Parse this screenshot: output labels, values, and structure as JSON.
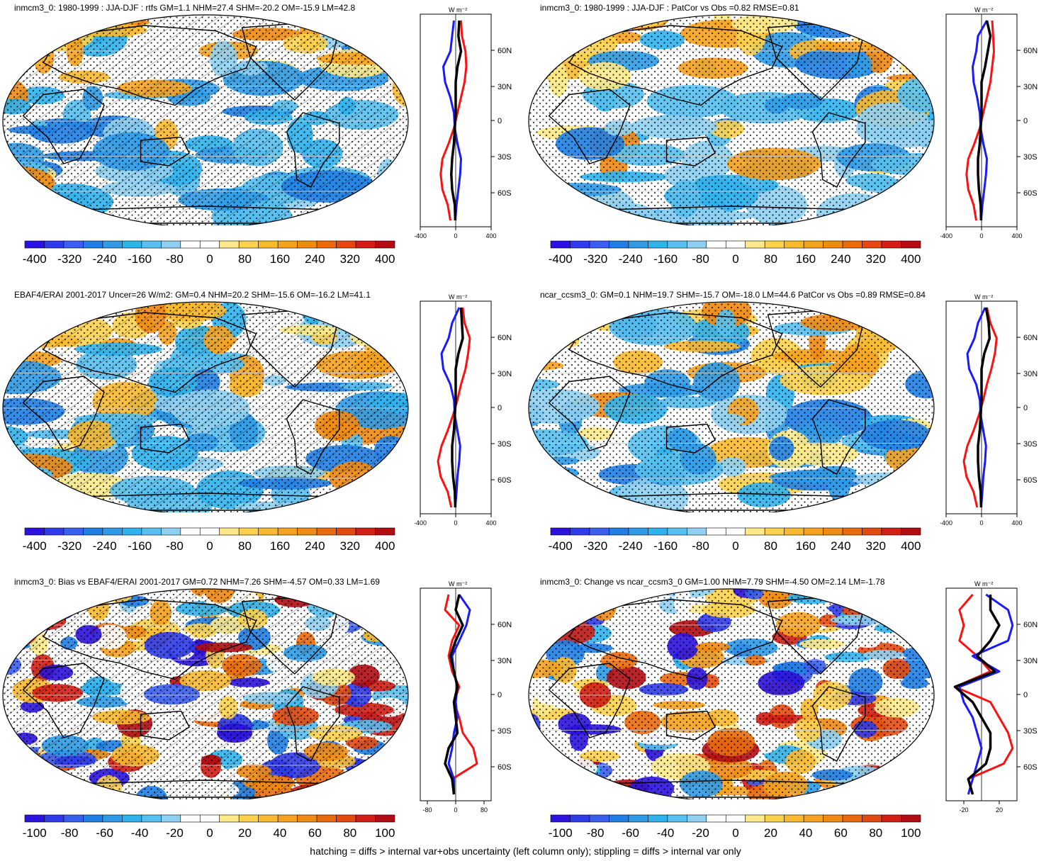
{
  "colors": {
    "palette": [
      "#2b12e0",
      "#2f3bea",
      "#3a5ef0",
      "#1f7fe6",
      "#2e9be8",
      "#2fb3ee",
      "#56c0f0",
      "#8fd0f2",
      "#ffffff",
      "#ffffff",
      "#fde98a",
      "#fcd24c",
      "#f9b92f",
      "#f6a21e",
      "#f08a12",
      "#ea6b0c",
      "#e44a10",
      "#d21e14",
      "#b30c12"
    ],
    "zonal_red": "#ff1010",
    "zonal_blue": "#1a1aff",
    "zonal_black": "#000000"
  },
  "footer": "hatching = diffs > internal var+obs uncertainty (left column only); stippling = diffs > internal var only",
  "panels": [
    {
      "title": "inmcm3_0: 1980-1999 : JJA-DJF : rtfs GM=1.1 NHM=27.4 SHM=-20.2 OM=-15.9 LM=42.8",
      "zonal_units": "W m⁻²",
      "chart_data": {
        "type": "heatmap",
        "colorbar_labels": [
          "-400",
          "-320",
          "-240",
          "-160",
          "-80",
          "0",
          "80",
          "160",
          "240",
          "320",
          "400"
        ],
        "zonal_xticks": [
          "-400",
          "0",
          "400"
        ],
        "zonal_yticks": [
          "60N",
          "30N",
          "0",
          "30S",
          "60S"
        ],
        "zonal_xlim": [
          -400,
          400
        ],
        "zonal_series": [
          {
            "name": "red",
            "values": [
              60,
              70,
              110,
              120,
              100,
              60,
              20,
              -20,
              -80,
              -150,
              -170,
              -150,
              -90,
              -60
            ]
          },
          {
            "name": "blue",
            "values": [
              -20,
              -40,
              -60,
              -140,
              -120,
              -60,
              -20,
              -10,
              20,
              60,
              50,
              30,
              10,
              -5
            ]
          },
          {
            "name": "black",
            "values": [
              40,
              30,
              60,
              20,
              0,
              0,
              0,
              -10,
              -20,
              -40,
              -50,
              -40,
              -10,
              -5
            ]
          }
        ],
        "hatching": true
      }
    },
    {
      "title": "inmcm3_0: 1980-1999 : JJA-DJF : PatCor vs Obs =0.82 RMSE=0.81",
      "zonal_units": "W m⁻²",
      "chart_data": {
        "type": "heatmap",
        "colorbar_labels": [
          "-400",
          "-320",
          "-240",
          "-160",
          "-80",
          "0",
          "80",
          "160",
          "240",
          "320",
          "400"
        ],
        "zonal_xticks": [
          "-400",
          "0",
          "400"
        ],
        "zonal_yticks": [
          "60N",
          "30N",
          "0",
          "30S",
          "60S"
        ],
        "zonal_xlim": [
          -400,
          400
        ],
        "zonal_series": [
          {
            "name": "red",
            "values": [
              120,
              130,
              140,
              120,
              100,
              60,
              20,
              -20,
              -80,
              -150,
              -170,
              -150,
              -90,
              -60
            ]
          },
          {
            "name": "blue",
            "values": [
              60,
              -40,
              -60,
              -100,
              -90,
              -50,
              -20,
              -10,
              20,
              60,
              50,
              30,
              10,
              -5
            ]
          },
          {
            "name": "black",
            "values": [
              60,
              100,
              70,
              40,
              0,
              0,
              0,
              -10,
              -20,
              -40,
              -40,
              -30,
              -10,
              -5
            ]
          }
        ],
        "hatching": false
      }
    },
    {
      "title": "EBAF4/ERAI 2001-2017 Uncer=26 W/m2: GM=0.4 NHM=20.2 SHM=-15.6 OM=-16.2 LM=41.1",
      "zonal_units": "W m⁻²",
      "chart_data": {
        "type": "heatmap",
        "colorbar_labels": [
          "-400",
          "-320",
          "-240",
          "-160",
          "-80",
          "0",
          "80",
          "160",
          "240",
          "320",
          "400"
        ],
        "zonal_xticks": [
          "-400",
          "0",
          "400"
        ],
        "zonal_yticks": [
          "60N",
          "30N",
          "0",
          "30S",
          "60S"
        ],
        "zonal_xlim": [
          -400,
          400
        ],
        "zonal_series": [
          {
            "name": "red",
            "values": [
              80,
              100,
              160,
              140,
              110,
              60,
              20,
              -30,
              -90,
              -160,
              -200,
              -170,
              -90,
              -50
            ]
          },
          {
            "name": "blue",
            "values": [
              40,
              -40,
              -80,
              -160,
              -140,
              -60,
              -20,
              -10,
              20,
              50,
              40,
              20,
              10,
              -5
            ]
          },
          {
            "name": "black",
            "values": [
              60,
              70,
              80,
              30,
              0,
              0,
              0,
              -10,
              -20,
              -40,
              -40,
              -30,
              -10,
              -5
            ]
          }
        ],
        "hatching": true
      }
    },
    {
      "title": "ncar_ccsm3_0: GM=0.1 NHM=19.7 SHM=-15.7 OM=-18.0 LM=44.6 PatCor vs Obs =0.89 RMSE=0.84",
      "zonal_units": "W m⁻²",
      "chart_data": {
        "type": "heatmap",
        "colorbar_labels": [
          "-400",
          "-320",
          "-240",
          "-160",
          "-80",
          "0",
          "80",
          "160",
          "240",
          "320",
          "400"
        ],
        "zonal_xticks": [
          "-400",
          "0",
          "400"
        ],
        "zonal_yticks": [
          "60N",
          "30N",
          "0",
          "30S",
          "60S"
        ],
        "zonal_xlim": [
          -400,
          400
        ],
        "zonal_series": [
          {
            "name": "red",
            "values": [
              60,
              100,
              170,
              150,
              110,
              60,
              20,
              -30,
              -90,
              -160,
              -200,
              -170,
              -90,
              -50
            ]
          },
          {
            "name": "blue",
            "values": [
              40,
              -40,
              -80,
              -160,
              -140,
              -60,
              -20,
              -10,
              20,
              50,
              40,
              20,
              10,
              -5
            ]
          },
          {
            "name": "black",
            "values": [
              50,
              80,
              90,
              30,
              0,
              0,
              0,
              -10,
              -20,
              -40,
              -40,
              -30,
              -10,
              -5
            ]
          }
        ],
        "hatching": false
      }
    },
    {
      "title": "inmcm3_0: Bias vs EBAF4/ERAI 2001-2017 GM=0.72 NHM=7.26 SHM=-4.57 OM=0.33 LM=1.69",
      "zonal_units": "W m⁻²",
      "chart_data": {
        "type": "heatmap",
        "colorbar_labels": [
          "-100",
          "-80",
          "-60",
          "-40",
          "-20",
          "0",
          "20",
          "40",
          "60",
          "80",
          "100"
        ],
        "zonal_xticks": [
          "-80",
          "0",
          "80"
        ],
        "zonal_yticks": [
          "60N",
          "30N",
          "0",
          "30S",
          "60S"
        ],
        "zonal_xlim": [
          -100,
          100
        ],
        "zonal_series": [
          {
            "name": "red",
            "values": [
              -20,
              -30,
              10,
              -10,
              -20,
              -10,
              10,
              -5,
              10,
              20,
              50,
              60,
              -10,
              -5
            ]
          },
          {
            "name": "blue",
            "values": [
              10,
              40,
              30,
              10,
              -10,
              -5,
              5,
              0,
              5,
              -5,
              -10,
              -20,
              -5,
              -5
            ]
          },
          {
            "name": "black",
            "values": [
              10,
              0,
              20,
              0,
              -15,
              -5,
              5,
              -5,
              0,
              5,
              -20,
              -30,
              -10,
              -5
            ]
          }
        ],
        "hatching": true
      }
    },
    {
      "title": "inmcm3_0: Change vs ncar_ccsm3_0 GM=1.00 NHM=7.79 SHM=-4.50 OM=2.14 LM=-1.78",
      "zonal_units": "W m⁻²",
      "chart_data": {
        "type": "heatmap",
        "colorbar_labels": [
          "-100",
          "-80",
          "-60",
          "-40",
          "-20",
          "0",
          "20",
          "40",
          "60",
          "80",
          "100"
        ],
        "zonal_xticks": [
          "-20",
          "20"
        ],
        "zonal_yticks": [
          "60N",
          "30N",
          "0",
          "30S",
          "60S"
        ],
        "zonal_xlim": [
          -40,
          40
        ],
        "zonal_series": [
          {
            "name": "red",
            "values": [
              -10,
              -25,
              -20,
              -25,
              -5,
              10,
              -30,
              10,
              20,
              30,
              35,
              25,
              -15,
              -10
            ]
          },
          {
            "name": "blue",
            "values": [
              5,
              30,
              35,
              30,
              -10,
              20,
              -25,
              -20,
              -10,
              -5,
              0,
              -5,
              -10,
              -15
            ]
          },
          {
            "name": "black",
            "values": [
              10,
              10,
              20,
              10,
              -5,
              15,
              -30,
              -10,
              0,
              10,
              10,
              5,
              -15,
              -10
            ]
          }
        ],
        "hatching": false
      }
    }
  ]
}
